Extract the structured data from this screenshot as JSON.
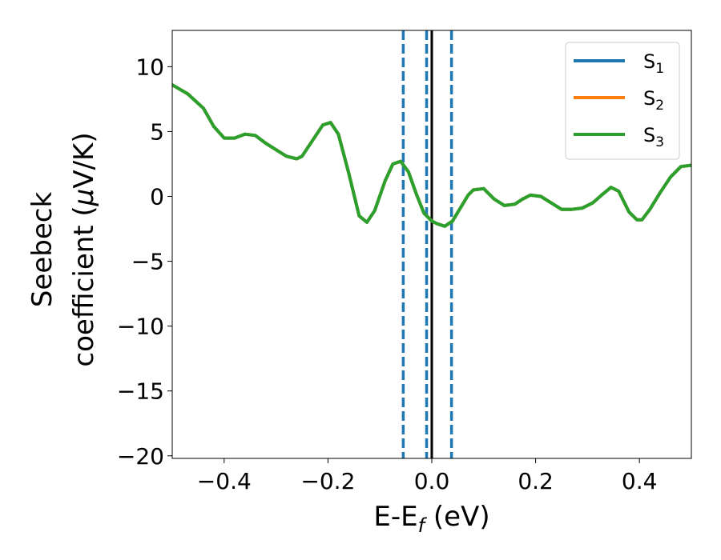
{
  "chart_data": {
    "type": "line",
    "xlabel": "E-E",
    "xlabel_sub": "f",
    "xlabel_unit": " (eV)",
    "ylabel_line1": "Seebeck",
    "ylabel_line2_pre": "coefficient  (",
    "ylabel_mu": "μ",
    "ylabel_line2_post": "V/K)",
    "xlim": [
      -0.5,
      0.5
    ],
    "ylim": [
      -20.2,
      12.8
    ],
    "x_ticks": [
      {
        "value": -0.4,
        "label": "−0.4"
      },
      {
        "value": -0.2,
        "label": "−0.2"
      },
      {
        "value": 0.0,
        "label": "0.0"
      },
      {
        "value": 0.2,
        "label": "0.2"
      },
      {
        "value": 0.4,
        "label": "0.4"
      }
    ],
    "y_ticks": [
      {
        "value": 10,
        "label": "10"
      },
      {
        "value": 5,
        "label": "5"
      },
      {
        "value": 0,
        "label": "0"
      },
      {
        "value": -5,
        "label": "−5"
      },
      {
        "value": -10,
        "label": "−10"
      },
      {
        "value": -15,
        "label": "−15"
      },
      {
        "value": -20,
        "label": "−20"
      }
    ],
    "legend_position": "top-right",
    "legend": [
      {
        "base": "S",
        "sub": "1",
        "color": "#1f77b4"
      },
      {
        "base": "S",
        "sub": "2",
        "color": "#ff7f0e"
      },
      {
        "base": "S",
        "sub": "3",
        "color": "#2ca02c"
      }
    ],
    "x": [
      -0.5,
      -0.47,
      -0.44,
      -0.42,
      -0.4,
      -0.38,
      -0.36,
      -0.34,
      -0.32,
      -0.3,
      -0.28,
      -0.26,
      -0.25,
      -0.23,
      -0.21,
      -0.195,
      -0.18,
      -0.16,
      -0.14,
      -0.125,
      -0.11,
      -0.09,
      -0.075,
      -0.06,
      -0.045,
      -0.03,
      -0.015,
      0.0,
      0.01,
      0.025,
      0.04,
      0.055,
      0.07,
      0.08,
      0.1,
      0.12,
      0.14,
      0.16,
      0.175,
      0.19,
      0.21,
      0.23,
      0.25,
      0.27,
      0.29,
      0.31,
      0.33,
      0.345,
      0.36,
      0.38,
      0.395,
      0.405,
      0.42,
      0.44,
      0.46,
      0.48,
      0.5
    ],
    "series": [
      {
        "color": "#1f77b4",
        "values": [
          8.6,
          7.9,
          6.8,
          5.4,
          4.5,
          4.5,
          4.8,
          4.7,
          4.1,
          3.6,
          3.1,
          2.9,
          3.1,
          4.3,
          5.5,
          5.7,
          4.8,
          1.8,
          -1.5,
          -2.0,
          -1.1,
          1.2,
          2.5,
          2.7,
          1.9,
          0.2,
          -1.3,
          -1.9,
          -2.1,
          -2.3,
          -1.9,
          -0.9,
          0.1,
          0.5,
          0.6,
          -0.2,
          -0.7,
          -0.6,
          -0.2,
          0.1,
          0.0,
          -0.5,
          -1.0,
          -1.0,
          -0.9,
          -0.5,
          0.2,
          0.7,
          0.4,
          -1.2,
          -1.8,
          -1.8,
          -1.0,
          0.3,
          1.5,
          2.3,
          2.4
        ]
      },
      {
        "color": "#ff7f0e",
        "values": [
          8.6,
          7.9,
          6.8,
          5.4,
          4.5,
          4.5,
          4.8,
          4.7,
          4.1,
          3.6,
          3.1,
          2.9,
          3.1,
          4.3,
          5.5,
          5.7,
          4.8,
          1.8,
          -1.5,
          -2.0,
          -1.1,
          1.2,
          2.5,
          2.7,
          1.9,
          0.2,
          -1.3,
          -1.9,
          -2.1,
          -2.3,
          -1.9,
          -0.9,
          0.1,
          0.5,
          0.6,
          -0.2,
          -0.7,
          -0.6,
          -0.2,
          0.1,
          0.0,
          -0.5,
          -1.0,
          -1.0,
          -0.9,
          -0.5,
          0.2,
          0.7,
          0.4,
          -1.2,
          -1.8,
          -1.8,
          -1.0,
          0.3,
          1.5,
          2.3,
          2.4
        ]
      },
      {
        "color": "#2ca02c",
        "values": [
          8.6,
          7.9,
          6.8,
          5.4,
          4.5,
          4.5,
          4.8,
          4.7,
          4.1,
          3.6,
          3.1,
          2.9,
          3.1,
          4.3,
          5.5,
          5.7,
          4.8,
          1.8,
          -1.5,
          -2.0,
          -1.1,
          1.2,
          2.5,
          2.7,
          1.9,
          0.2,
          -1.3,
          -1.9,
          -2.1,
          -2.3,
          -1.9,
          -0.9,
          0.1,
          0.5,
          0.6,
          -0.2,
          -0.7,
          -0.6,
          -0.2,
          0.1,
          0.0,
          -0.5,
          -1.0,
          -1.0,
          -0.9,
          -0.5,
          0.2,
          0.7,
          0.4,
          -1.2,
          -1.8,
          -1.8,
          -1.0,
          0.3,
          1.5,
          2.3,
          2.4
        ]
      }
    ],
    "vertical_lines": [
      {
        "x": -0.055,
        "style": "dashed",
        "color": "#1f77b4"
      },
      {
        "x": -0.01,
        "style": "dashed",
        "color": "#1f77b4"
      },
      {
        "x": 0.0,
        "style": "solid",
        "color": "#000000"
      },
      {
        "x": 0.038,
        "style": "dashed",
        "color": "#1f77b4"
      }
    ]
  }
}
